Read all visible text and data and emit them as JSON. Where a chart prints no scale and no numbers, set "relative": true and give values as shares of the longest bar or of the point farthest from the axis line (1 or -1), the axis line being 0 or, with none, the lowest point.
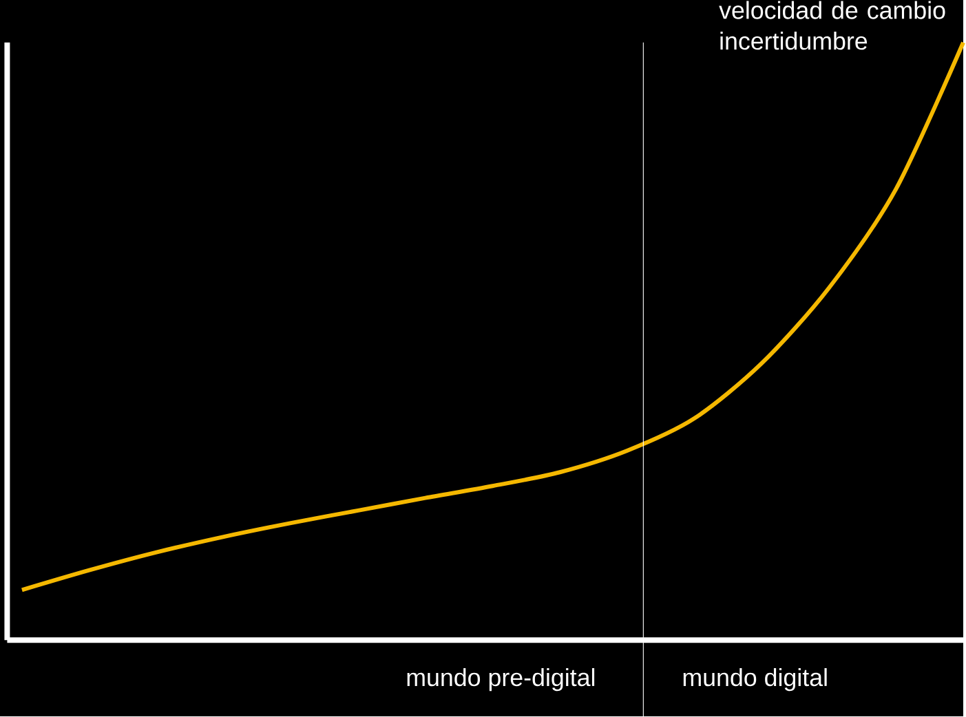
{
  "chart_data": {
    "type": "line",
    "relative": true,
    "categories": [
      null,
      null,
      null,
      null,
      null,
      null,
      null,
      null,
      null,
      null,
      null,
      null,
      null,
      null,
      null
    ],
    "series": [
      {
        "color": "#f5b800",
        "values": [
          0.084,
          0.117,
          0.147,
          0.173,
          0.196,
          0.217,
          0.238,
          0.258,
          0.281,
          0.317,
          0.371,
          0.463,
          0.589,
          0.755,
          1
        ]
      }
    ],
    "annotations": [
      "velocidad de cambio incertidumbre",
      "mundo pre-digital",
      "mundo digital"
    ],
    "marker": "none",
    "line_style": "solid"
  }
}
